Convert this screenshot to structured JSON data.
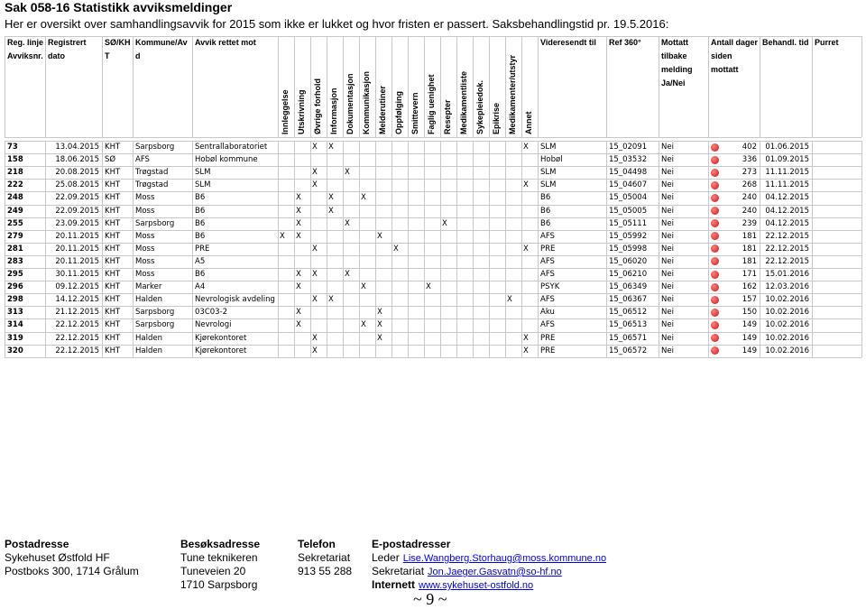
{
  "header": {
    "title": "Sak 058-16 Statistikk avviksmeldinger",
    "subtitle": "Her er oversikt over samhandlingsavvik for 2015 som ikke er lukket og hvor fristen er passert. Saksbehandlingstid pr. 19.5.2016:"
  },
  "table": {
    "columns": [
      [
        "Reg. linje",
        "Avviksnr."
      ],
      [
        "Registrert",
        "dato"
      ],
      [
        "SØ/KH",
        "T"
      ],
      [
        "Kommune/Av",
        "d"
      ],
      [
        "Avvik rettet mot"
      ],
      [
        "Innleggelse"
      ],
      [
        "Utskrivning"
      ],
      [
        "Øvrige forhold"
      ],
      [
        "Informasjon"
      ],
      [
        "Dokumentasjon"
      ],
      [
        "Kommunikasjon"
      ],
      [
        "Melderutiner"
      ],
      [
        "Oppfølging"
      ],
      [
        "Smittevern"
      ],
      [
        "Faglig uenighet"
      ],
      [
        "Resepter"
      ],
      [
        "Medikamentliste"
      ],
      [
        "Sykepleiedok."
      ],
      [
        "Epikrise"
      ],
      [
        "Medikamenter/utstyr"
      ],
      [
        "Annet"
      ],
      [
        "Videresendt til"
      ],
      [
        "Ref 360°"
      ],
      [
        "Mottatt",
        "tilbake",
        "melding",
        "Ja/Nei"
      ],
      [
        "Antall dager",
        "siden",
        "mottatt"
      ],
      [
        "Behandl. tid"
      ],
      [
        "Purret"
      ]
    ],
    "mark_symbol": "X",
    "rows": [
      {
        "nr": "73",
        "dato": "13.04.2015",
        "org": "KHT",
        "kommune": "Sarpsborg",
        "avvik": "Sentrallaboratoriet",
        "marks": [
          2,
          3,
          15
        ],
        "videresendt": "SLM",
        "ref": "15_02091",
        "mottatt": "Nei",
        "dager": "402",
        "behandl": "01.06.2015"
      },
      {
        "nr": "158",
        "dato": "18.06.2015",
        "org": "SØ",
        "kommune": "AFS",
        "avvik": "Hobøl kommune",
        "marks": [],
        "videresendt": "Hobøl",
        "ref": "15_03532",
        "mottatt": "Nei",
        "dager": "336",
        "behandl": "01.09.2015"
      },
      {
        "nr": "218",
        "dato": "20.08.2015",
        "org": "KHT",
        "kommune": "Trøgstad",
        "avvik": "SLM",
        "marks": [
          2,
          4
        ],
        "videresendt": "SLM",
        "ref": "15_04498",
        "mottatt": "Nei",
        "dager": "273",
        "behandl": "11.11.2015"
      },
      {
        "nr": "222",
        "dato": "25.08.2015",
        "org": "KHT",
        "kommune": "Trøgstad",
        "avvik": "SLM",
        "marks": [
          2,
          15
        ],
        "videresendt": "SLM",
        "ref": "15_04607",
        "mottatt": "Nei",
        "dager": "268",
        "behandl": "11.11.2015"
      },
      {
        "nr": "248",
        "dato": "22.09.2015",
        "org": "KHT",
        "kommune": "Moss",
        "avvik": "B6",
        "marks": [
          1,
          3,
          5
        ],
        "videresendt": "B6",
        "ref": "15_05004",
        "mottatt": "Nei",
        "dager": "240",
        "behandl": "04.12.2015"
      },
      {
        "nr": "249",
        "dato": "22.09.2015",
        "org": "KHT",
        "kommune": "Moss",
        "avvik": "B6",
        "marks": [
          1,
          3
        ],
        "videresendt": "B6",
        "ref": "15_05005",
        "mottatt": "Nei",
        "dager": "240",
        "behandl": "04.12.2015"
      },
      {
        "nr": "255",
        "dato": "23.09.2015",
        "org": "KHT",
        "kommune": "Sarpsborg",
        "avvik": "B6",
        "marks": [
          1,
          4,
          10
        ],
        "videresendt": "B6",
        "ref": "15_05111",
        "mottatt": "Nei",
        "dager": "239",
        "behandl": "04.12.2015"
      },
      {
        "nr": "279",
        "dato": "20.11.2015",
        "org": "KHT",
        "kommune": "Moss",
        "avvik": "B6",
        "marks": [
          0,
          1,
          6
        ],
        "videresendt": "AFS",
        "ref": "15_05992",
        "mottatt": "Nei",
        "dager": "181",
        "behandl": "22.12.2015"
      },
      {
        "nr": "281",
        "dato": "20.11.2015",
        "org": "KHT",
        "kommune": "Moss",
        "avvik": "PRE",
        "marks": [
          2,
          7,
          15
        ],
        "videresendt": "PRE",
        "ref": "15_05998",
        "mottatt": "Nei",
        "dager": "181",
        "behandl": "22.12.2015"
      },
      {
        "nr": "283",
        "dato": "20.11.2015",
        "org": "KHT",
        "kommune": "Moss",
        "avvik": "A5",
        "marks": [],
        "videresendt": "AFS",
        "ref": "15_06020",
        "mottatt": "Nei",
        "dager": "181",
        "behandl": "22.12.2015"
      },
      {
        "nr": "295",
        "dato": "30.11.2015",
        "org": "KHT",
        "kommune": "Moss",
        "avvik": "B6",
        "marks": [
          1,
          2,
          4
        ],
        "videresendt": "AFS",
        "ref": "15_06210",
        "mottatt": "Nei",
        "dager": "171",
        "behandl": "15.01.2016"
      },
      {
        "nr": "296",
        "dato": "09.12.2015",
        "org": "KHT",
        "kommune": "Marker",
        "avvik": "A4",
        "marks": [
          1,
          5,
          9
        ],
        "videresendt": "PSYK",
        "ref": "15_06349",
        "mottatt": "Nei",
        "dager": "162",
        "behandl": "12.03.2016"
      },
      {
        "nr": "298",
        "dato": "14.12.2015",
        "org": "KHT",
        "kommune": "Halden",
        "avvik": "Nevrologisk avdeling",
        "marks": [
          2,
          3,
          14
        ],
        "videresendt": "AFS",
        "ref": "15_06367",
        "mottatt": "Nei",
        "dager": "157",
        "behandl": "10.02.2016"
      },
      {
        "nr": "313",
        "dato": "21.12.2015",
        "org": "KHT",
        "kommune": "Sarpsborg",
        "avvik": "03C03-2",
        "marks": [
          1,
          6
        ],
        "videresendt": "Aku",
        "ref": "15_06512",
        "mottatt": "Nei",
        "dager": "150",
        "behandl": "10.02.2016"
      },
      {
        "nr": "314",
        "dato": "22.12.2015",
        "org": "KHT",
        "kommune": "Sarpsborg",
        "avvik": "Nevrologi",
        "marks": [
          1,
          5,
          6
        ],
        "videresendt": "AFS",
        "ref": "15_06513",
        "mottatt": "Nei",
        "dager": "149",
        "behandl": "10.02.2016"
      },
      {
        "nr": "319",
        "dato": "22.12.2015",
        "org": "KHT",
        "kommune": "Halden",
        "avvik": "Kjørekontoret",
        "marks": [
          2,
          6,
          15
        ],
        "videresendt": "PRE",
        "ref": "15_06571",
        "mottatt": "Nei",
        "dager": "149",
        "behandl": "10.02.2016"
      },
      {
        "nr": "320",
        "dato": "22.12.2015",
        "org": "KHT",
        "kommune": "Halden",
        "avvik": "Kjørekontoret",
        "marks": [
          2,
          15
        ],
        "videresendt": "PRE",
        "ref": "15_06572",
        "mottatt": "Nei",
        "dager": "149",
        "behandl": "10.02.2016"
      }
    ]
  },
  "footer": {
    "blocks": [
      [
        "Postadresse",
        "Sykehuset Østfold HF",
        "Postboks 300, 1714 Grålum"
      ],
      [
        "Besøksadresse",
        "Tune teknikeren",
        "Tuneveien 20",
        "1710 Sarpsborg"
      ],
      [
        "Telefon",
        "Sekretariat",
        "913 55 288"
      ]
    ],
    "email": {
      "heading": "E-postadresser",
      "lines": [
        [
          "Leder",
          "Lise.Wangberg.Storhaug@moss.kommune.no"
        ],
        [
          "Sekretariat",
          "Jon.Jaeger.Gasvatn@so-hf.no"
        ],
        [
          "Internett",
          "www.sykehuset-ostfold.no"
        ]
      ]
    },
    "page": "~ 9 ~"
  }
}
